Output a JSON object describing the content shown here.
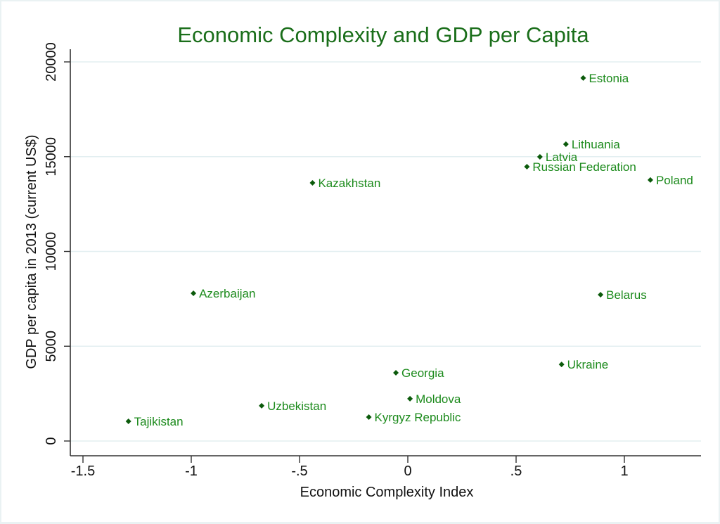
{
  "chart_data": {
    "type": "scatter",
    "title": "Economic Complexity and GDP per Capita",
    "xlabel": "Economic Complexity Index",
    "ylabel": "GDP per capita in 2013 (current US$)",
    "xlim": [
      -1.58,
      1.35
    ],
    "ylim": [
      -300,
      21000
    ],
    "xticks": [
      -1.5,
      -1,
      -0.5,
      0,
      0.5,
      1
    ],
    "xtick_labels": [
      "-1.5",
      "-1",
      "-.5",
      "0",
      ".5",
      "1"
    ],
    "yticks": [
      0,
      5000,
      10000,
      15000,
      20000
    ],
    "ytick_labels": [
      "0",
      "5000",
      "10000",
      "15000",
      "20000"
    ],
    "grid": "horizontal",
    "colors": {
      "title": "#1a6e1a",
      "marker": "#0b5a0b",
      "label": "#1b8a1b",
      "grid": "#e3eff1"
    },
    "points": [
      {
        "label": "Estonia",
        "x": 0.81,
        "y": 19150
      },
      {
        "label": "Lithuania",
        "x": 0.73,
        "y": 15660
      },
      {
        "label": "Latvia",
        "x": 0.61,
        "y": 14990
      },
      {
        "label": "Russian Federation",
        "x": 0.55,
        "y": 14470
      },
      {
        "label": "Poland",
        "x": 1.12,
        "y": 13770
      },
      {
        "label": "Kazakhstan",
        "x": -0.44,
        "y": 13620
      },
      {
        "label": "Azerbaijan",
        "x": -0.99,
        "y": 7790
      },
      {
        "label": "Belarus",
        "x": 0.89,
        "y": 7720
      },
      {
        "label": "Ukraine",
        "x": 0.71,
        "y": 4040
      },
      {
        "label": "Georgia",
        "x": -0.055,
        "y": 3600
      },
      {
        "label": "Moldova",
        "x": 0.01,
        "y": 2230
      },
      {
        "label": "Uzbekistan",
        "x": -0.675,
        "y": 1860
      },
      {
        "label": "Kyrgyz Republic",
        "x": -0.18,
        "y": 1260
      },
      {
        "label": "Tajikistan",
        "x": -1.29,
        "y": 1040
      }
    ]
  }
}
